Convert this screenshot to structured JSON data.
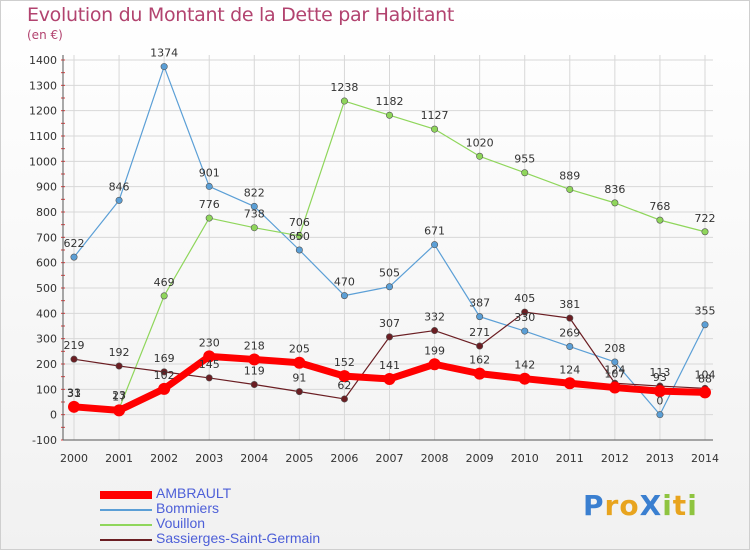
{
  "title": "Evolution du Montant de la Dette par Habitant",
  "unit_label": "(en €)",
  "logo_text": "ProXiti",
  "chart_data": {
    "type": "line",
    "title": "Evolution du Montant de la Dette par Habitant",
    "ylabel": "(en €)",
    "xlabel": "",
    "x": [
      2000,
      2001,
      2002,
      2003,
      2004,
      2005,
      2006,
      2007,
      2008,
      2009,
      2010,
      2011,
      2012,
      2013,
      2014
    ],
    "ylim": [
      -100,
      1400
    ],
    "yticks": [
      -100,
      0,
      100,
      200,
      300,
      400,
      500,
      600,
      700,
      800,
      900,
      1000,
      1100,
      1200,
      1300,
      1400
    ],
    "grid": true,
    "legend": "bottom-left",
    "series": [
      {
        "name": "Bommiers",
        "color": "#5b9fd6",
        "values": [
          622,
          846,
          1374,
          901,
          822,
          650,
          470,
          505,
          671,
          387,
          330,
          269,
          208,
          0,
          355
        ]
      },
      {
        "name": "Vouillon",
        "color": "#8fd65b",
        "values": [
          33,
          23,
          469,
          776,
          738,
          706,
          1238,
          1182,
          1127,
          1020,
          955,
          889,
          836,
          768,
          722
        ]
      },
      {
        "name": "Sassierges-Saint-Germain",
        "color": "#6b1e23",
        "values": [
          219,
          192,
          169,
          145,
          119,
          91,
          62,
          307,
          332,
          271,
          405,
          381,
          124,
          113,
          104
        ]
      },
      {
        "name": "AMBRAULT",
        "color": "#ff0000",
        "values": [
          31,
          17,
          102,
          230,
          218,
          205,
          152,
          141,
          199,
          162,
          142,
          124,
          107,
          93,
          88
        ]
      }
    ],
    "data_labels": [
      {
        "series": "Bommiers",
        "labels": [
          "622",
          "846",
          "1374",
          "901",
          "822",
          "650",
          "470",
          "505",
          "671",
          "387",
          "330",
          "269",
          "208",
          "0",
          "355"
        ]
      },
      {
        "series": "Vouillon",
        "labels": [
          "33",
          "23",
          "469",
          "776",
          "738",
          "706",
          "1238",
          "1182",
          "1127",
          "1020",
          "955",
          "889",
          "836",
          "768",
          "722"
        ]
      },
      {
        "series": "Sassierges-Saint-Germain",
        "labels": [
          "219",
          "192",
          "169",
          "145",
          "119",
          "91",
          "62",
          "307",
          "332",
          "271",
          "405",
          "381",
          "124",
          "113",
          "104"
        ]
      },
      {
        "series": "AMBRAULT",
        "labels": [
          "31",
          "17",
          "102",
          "230",
          "218",
          "205",
          "152",
          "141",
          "199",
          "162",
          "142",
          "124",
          "107",
          "93",
          "88"
        ]
      }
    ]
  }
}
